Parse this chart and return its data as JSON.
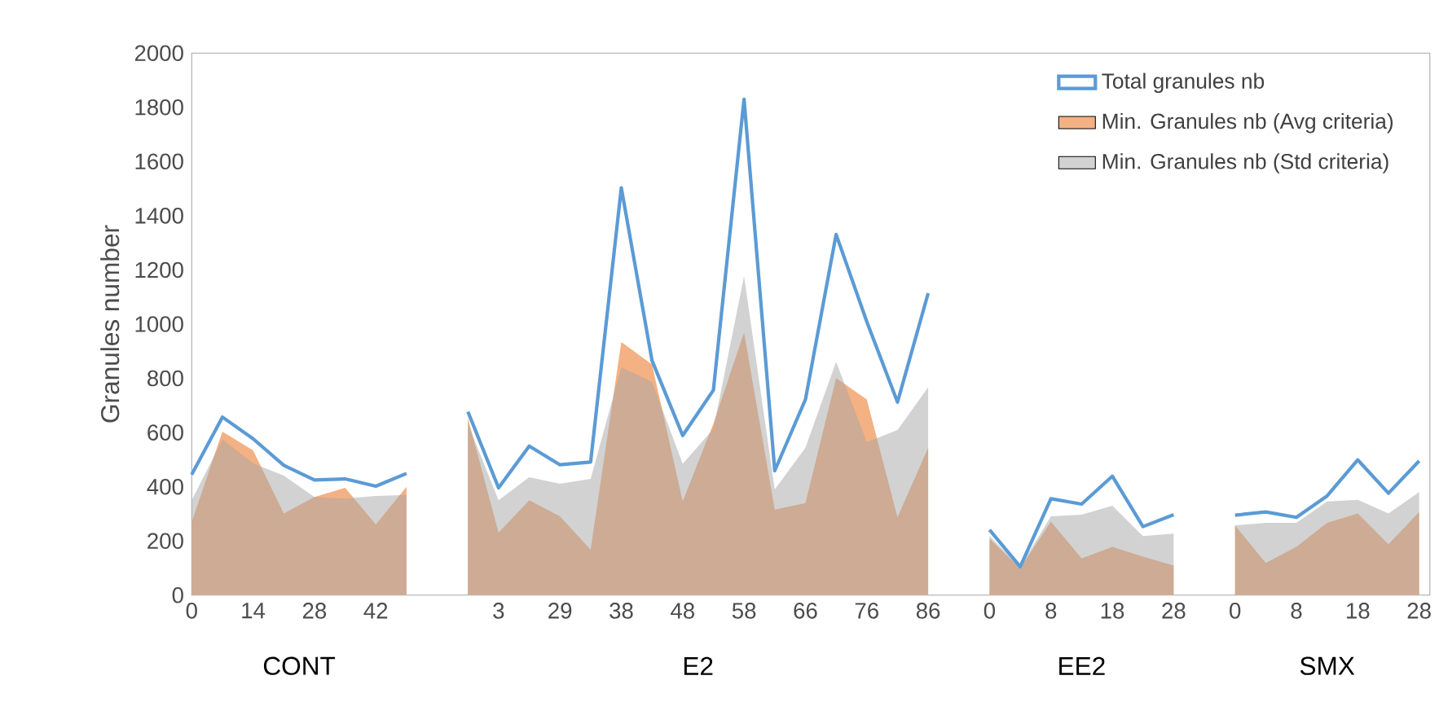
{
  "chart_data": {
    "type": "area",
    "ylabel": "Granules number",
    "categories": [
      "0",
      null,
      "14",
      null,
      "28",
      null,
      "42",
      null,
      null,
      null,
      "3",
      null,
      "29",
      null,
      "38",
      null,
      "48",
      null,
      "58",
      null,
      "66",
      null,
      "76",
      null,
      "86",
      null,
      "0",
      null,
      "8",
      null,
      "18",
      null,
      "28",
      null,
      "0",
      null,
      "8",
      null,
      "18",
      null,
      "28"
    ],
    "series": [
      {
        "name": "Total granules nb",
        "type": "line",
        "color": "#5b9bd5",
        "values": [
          445,
          657,
          577,
          479,
          425,
          429,
          402,
          449,
          null,
          677,
          396,
          550,
          481,
          491,
          1503,
          866,
          589,
          756,
          1830,
          459,
          722,
          1331,
          1009,
          712,
          1114,
          null,
          241,
          105,
          356,
          336,
          439,
          253,
          297,
          null,
          295,
          307,
          287,
          366,
          499,
          376,
          495
        ]
      },
      {
        "name": "Min. Granules nb (Avg criteria)",
        "color": "#f4b183",
        "values": [
          270,
          603,
          534,
          301,
          362,
          396,
          261,
          400,
          null,
          653,
          231,
          350,
          291,
          168,
          934,
          851,
          346,
          633,
          969,
          316,
          340,
          801,
          722,
          287,
          544,
          null,
          208,
          99,
          271,
          135,
          178,
          142,
          109,
          null,
          257,
          119,
          178,
          267,
          301,
          188,
          307
        ]
      },
      {
        "name": "Min. Granules nb (Std criteria)",
        "color": "#a5a5a5",
        "values": [
          350,
          574,
          486,
          441,
          362,
          356,
          366,
          370,
          null,
          633,
          350,
          435,
          411,
          429,
          841,
          787,
          485,
          613,
          1177,
          390,
          544,
          861,
          564,
          609,
          767,
          null,
          218,
          105,
          291,
          297,
          330,
          218,
          227,
          null,
          257,
          267,
          267,
          346,
          352,
          301,
          380
        ]
      }
    ],
    "ylim": [
      0,
      2000
    ],
    "yticks": [
      0,
      200,
      400,
      600,
      800,
      1000,
      1200,
      1400,
      1600,
      1800,
      2000
    ],
    "legend": "top right",
    "annotations": [
      "CONT",
      "E2",
      "EE2",
      "SMX"
    ]
  }
}
